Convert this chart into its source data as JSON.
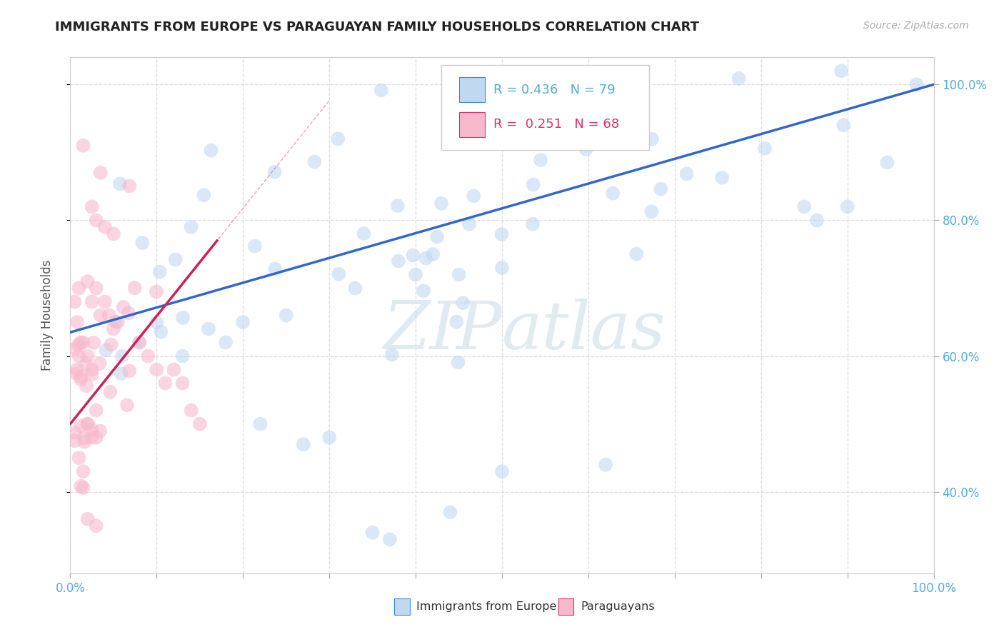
{
  "title": "IMMIGRANTS FROM EUROPE VS PARAGUAYAN FAMILY HOUSEHOLDS CORRELATION CHART",
  "source": "Source: ZipAtlas.com",
  "ylabel": "Family Households",
  "legend_label_blue": "Immigrants from Europe",
  "legend_label_pink": "Paraguayans",
  "watermark_line1": "ZIP",
  "watermark_line2": "atlas",
  "blue_R": 0.436,
  "blue_N": 79,
  "pink_R": 0.251,
  "pink_N": 68,
  "blue_fill": "#c0d8f0",
  "blue_edge": "#4488cc",
  "pink_fill": "#f8b8cc",
  "pink_edge": "#dd3366",
  "blue_line_color": "#3366cc",
  "pink_line_color": "#cc2255",
  "grid_color": "#dddddd",
  "title_color": "#222222",
  "tick_color": "#55aadd",
  "watermark_color": "#ddeef8",
  "bg": "#ffffff",
  "xlim": [
    0,
    1
  ],
  "ylim": [
    0.28,
    1.04
  ],
  "xticks": [
    0,
    0.1,
    0.2,
    0.3,
    0.4,
    0.5,
    0.6,
    0.7,
    0.8,
    0.9,
    1.0
  ],
  "xticklabels": [
    "0.0%",
    "",
    "",
    "",
    "",
    "",
    "",
    "",
    "",
    "",
    "100.0%"
  ],
  "yticks": [
    0.4,
    0.6,
    0.8,
    1.0
  ],
  "yticklabels_right": [
    "40.0%",
    "60.0%",
    "80.0%",
    "100.0%"
  ],
  "blue_trend_x0": 0.0,
  "blue_trend_y0": 0.635,
  "blue_trend_x1": 1.0,
  "blue_trend_y1": 1.0,
  "pink_trend_x0": 0.0,
  "pink_trend_y0": 0.5,
  "pink_trend_x1": 0.17,
  "pink_trend_y1": 0.77
}
